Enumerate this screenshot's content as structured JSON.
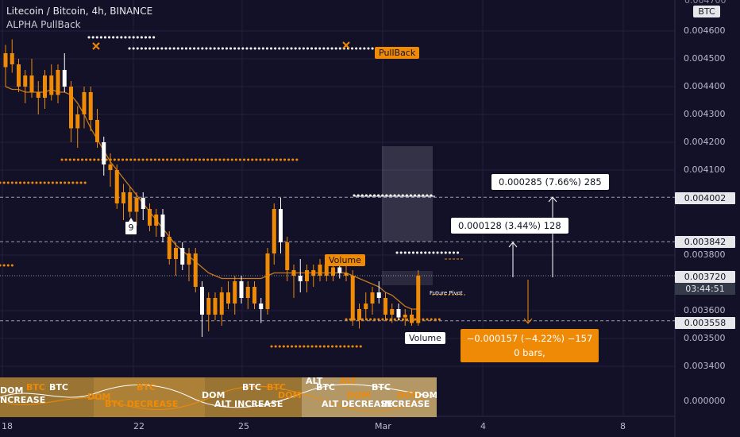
{
  "header": {
    "symbol_title": "Litecoin / Bitcoin, 4h, BINANCE",
    "indicator_name": "ALPHA PullBack",
    "currency_badge": "BTC",
    "top_price_partial": "0.004700"
  },
  "price_axis": {
    "labels": [
      "0.004600",
      "0.004500",
      "0.004400",
      "0.004300",
      "0.004200",
      "0.004100",
      "0.003800",
      "0.003600",
      "0.003500",
      "0.003400",
      "0.000000"
    ],
    "tags": {
      "resistance": "0.004002",
      "level": "0.003842",
      "current": "0.003720",
      "countdown": "03:44:51",
      "support": "0.003558"
    }
  },
  "time_axis": {
    "labels": [
      "18",
      "22",
      "25",
      "Mar",
      "4",
      "8"
    ]
  },
  "annotations": {
    "pullback_label": "PullBack",
    "volume_label_top": "Volume",
    "volume_label_bottom": "Volume",
    "future_pivot": "Future Pivot",
    "count_badge": "9",
    "measure_up_large": "0.000285 (7.66%) 285",
    "measure_up_small": "0.000128 (3.44%) 128",
    "measure_down_line1": "−0.000157 (−4.22%) −157",
    "measure_down_line2": "0 bars,"
  },
  "indicator_strip": {
    "texts": [
      "BTC",
      "BTC",
      "DOM",
      "DOM",
      "BTC",
      "DOM",
      "BTC",
      "DOM",
      "BTC",
      "DOM",
      "BTC",
      "ALT",
      "ALT",
      "DOM",
      "NCREASE",
      "INCREASE",
      "ALT INCREASE",
      "BTC DECREASE",
      "BTC DECREASE",
      "ALT DECREASE"
    ]
  },
  "colors": {
    "background": "#131128",
    "candle": "#ef8a06",
    "candle_alt": "#ffffff",
    "ma_line": "#c77a1c",
    "grid": "#232040"
  },
  "chart_data": {
    "type": "candlestick",
    "title": "Litecoin / Bitcoin, 4h, BINANCE",
    "x_ticks": [
      "18",
      "22",
      "25",
      "Mar",
      "4",
      "8"
    ],
    "ylim": [
      0.00334,
      0.0047
    ],
    "levels": {
      "resistance": 0.004002,
      "level": 0.003842,
      "current": 0.00372,
      "support": 0.003558
    },
    "ohlc": [
      [
        0.00447,
        0.00455,
        0.0044,
        0.00452
      ],
      [
        0.00452,
        0.00457,
        0.00445,
        0.00448
      ],
      [
        0.00448,
        0.0045,
        0.00438,
        0.0044
      ],
      [
        0.0044,
        0.00446,
        0.00434,
        0.00444
      ],
      [
        0.00444,
        0.0045,
        0.00436,
        0.00438
      ],
      [
        0.00438,
        0.00442,
        0.0043,
        0.00436
      ],
      [
        0.00436,
        0.00446,
        0.00432,
        0.00444
      ],
      [
        0.00444,
        0.00448,
        0.00435,
        0.00437
      ],
      [
        0.00437,
        0.00448,
        0.00434,
        0.00446
      ],
      [
        0.00446,
        0.00452,
        0.00438,
        0.0044
      ],
      [
        0.0044,
        0.00442,
        0.0042,
        0.00425
      ],
      [
        0.00425,
        0.00433,
        0.00418,
        0.0043
      ],
      [
        0.0043,
        0.0044,
        0.00425,
        0.00438
      ],
      [
        0.00438,
        0.0044,
        0.00424,
        0.00428
      ],
      [
        0.00428,
        0.00432,
        0.00418,
        0.0042
      ],
      [
        0.0042,
        0.00422,
        0.00408,
        0.00412
      ],
      [
        0.00412,
        0.00416,
        0.00404,
        0.0041
      ],
      [
        0.0041,
        0.00412,
        0.00396,
        0.00398
      ],
      [
        0.00398,
        0.00405,
        0.00392,
        0.00402
      ],
      [
        0.00402,
        0.00404,
        0.00393,
        0.00395
      ],
      [
        0.00395,
        0.00402,
        0.0039,
        0.004
      ],
      [
        0.004,
        0.00402,
        0.00392,
        0.00396
      ],
      [
        0.00396,
        0.00398,
        0.00388,
        0.0039
      ],
      [
        0.0039,
        0.00396,
        0.00386,
        0.00394
      ],
      [
        0.00394,
        0.00396,
        0.00384,
        0.00386
      ],
      [
        0.00386,
        0.00388,
        0.00376,
        0.00378
      ],
      [
        0.00378,
        0.00384,
        0.00372,
        0.00382
      ],
      [
        0.00382,
        0.00384,
        0.00374,
        0.00376
      ],
      [
        0.00376,
        0.00382,
        0.0037,
        0.0038
      ],
      [
        0.0038,
        0.00382,
        0.00366,
        0.00368
      ],
      [
        0.00368,
        0.0037,
        0.0035,
        0.00358
      ],
      [
        0.00358,
        0.00366,
        0.00352,
        0.00364
      ],
      [
        0.00364,
        0.00366,
        0.00356,
        0.00358
      ],
      [
        0.00358,
        0.00368,
        0.00354,
        0.00366
      ],
      [
        0.00366,
        0.0037,
        0.0036,
        0.00362
      ],
      [
        0.00362,
        0.00372,
        0.00358,
        0.0037
      ],
      [
        0.0037,
        0.00372,
        0.00362,
        0.00364
      ],
      [
        0.00364,
        0.0037,
        0.0036,
        0.00368
      ],
      [
        0.00368,
        0.0037,
        0.0036,
        0.00362
      ],
      [
        0.00362,
        0.00364,
        0.00355,
        0.0036
      ],
      [
        0.0036,
        0.00382,
        0.00358,
        0.0038
      ],
      [
        0.0038,
        0.00398,
        0.00376,
        0.00396
      ],
      [
        0.00396,
        0.004,
        0.0038,
        0.00384
      ],
      [
        0.00384,
        0.00386,
        0.0037,
        0.00374
      ],
      [
        0.00374,
        0.00376,
        0.00364,
        0.00372
      ],
      [
        0.00372,
        0.00378,
        0.00366,
        0.0037
      ],
      [
        0.0037,
        0.00376,
        0.00366,
        0.00374
      ],
      [
        0.00374,
        0.00376,
        0.00368,
        0.00372
      ],
      [
        0.00372,
        0.00378,
        0.0037,
        0.00376
      ],
      [
        0.00376,
        0.00378,
        0.0037,
        0.00372
      ],
      [
        0.00372,
        0.00376,
        0.0037,
        0.00375
      ],
      [
        0.00375,
        0.00377,
        0.00371,
        0.00373
      ],
      [
        0.00373,
        0.00376,
        0.0037,
        0.00372
      ],
      [
        0.00372,
        0.00374,
        0.00354,
        0.00356
      ],
      [
        0.00356,
        0.00362,
        0.00353,
        0.0036
      ],
      [
        0.0036,
        0.00366,
        0.00356,
        0.00362
      ],
      [
        0.00362,
        0.00368,
        0.00358,
        0.00366
      ],
      [
        0.00366,
        0.0037,
        0.00362,
        0.00364
      ],
      [
        0.00364,
        0.00366,
        0.00356,
        0.00358
      ],
      [
        0.00358,
        0.00362,
        0.00355,
        0.0036
      ],
      [
        0.0036,
        0.00362,
        0.00356,
        0.00357
      ],
      [
        0.00357,
        0.0036,
        0.00354,
        0.00358
      ],
      [
        0.00358,
        0.0036,
        0.00354,
        0.00355
      ],
      [
        0.00355,
        0.00374,
        0.00354,
        0.00372
      ]
    ],
    "moving_average": [
      0.0044,
      0.00439,
      0.00439,
      0.00438,
      0.00438,
      0.00438,
      0.00438,
      0.00439,
      0.00438,
      0.00438,
      0.00437,
      0.00434,
      0.0043,
      0.00425,
      0.00421,
      0.00417,
      0.00413,
      0.0041,
      0.00407,
      0.00404,
      0.00401,
      0.00398,
      0.00395,
      0.00392,
      0.00389,
      0.00386,
      0.00383,
      0.00381,
      0.00379,
      0.00377,
      0.00375,
      0.00373,
      0.00372,
      0.00371,
      0.00371,
      0.00371,
      0.00371,
      0.00371,
      0.00371,
      0.00371,
      0.00372,
      0.00373,
      0.00373,
      0.00373,
      0.00373,
      0.00373,
      0.00373,
      0.00373,
      0.00373,
      0.00373,
      0.00373,
      0.00373,
      0.00373,
      0.00372,
      0.00371,
      0.0037,
      0.00369,
      0.00368,
      0.00366,
      0.00365,
      0.00363,
      0.00361,
      0.0036,
      0.0036
    ]
  }
}
